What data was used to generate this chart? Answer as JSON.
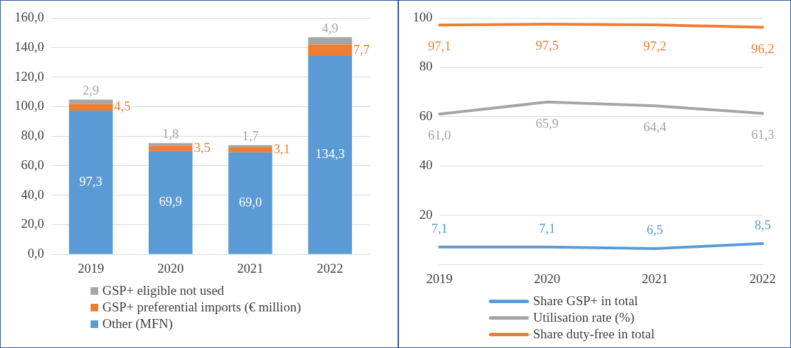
{
  "chart_data": [
    {
      "type": "bar",
      "stacked": true,
      "categories": [
        "2019",
        "2020",
        "2021",
        "2022"
      ],
      "series": [
        {
          "name": "Other (MFN)",
          "color": "#5b9bd5",
          "values": [
            97.3,
            69.9,
            69.0,
            134.3
          ],
          "value_labels": [
            "97,3",
            "69,9",
            "69,0",
            "134,3"
          ]
        },
        {
          "name": "GSP+ preferential imports (€ million)",
          "color": "#ed7d31",
          "values": [
            4.5,
            3.5,
            3.1,
            7.7
          ],
          "value_labels": [
            "4,5",
            "3,5",
            "3,1",
            "7,7"
          ]
        },
        {
          "name": "GSP+ eligible not used",
          "color": "#a5a5a5",
          "values": [
            2.9,
            1.8,
            1.7,
            4.9
          ],
          "value_labels": [
            "2,9",
            "1,8",
            "1,7",
            "4,9"
          ]
        }
      ],
      "ylim": [
        0,
        160
      ],
      "yticks": [
        {
          "value": 0,
          "label": "0,0"
        },
        {
          "value": 20,
          "label": "20,0"
        },
        {
          "value": 40,
          "label": "40,0"
        },
        {
          "value": 60,
          "label": "60,0"
        },
        {
          "value": 80,
          "label": "80,0"
        },
        {
          "value": 100,
          "label": "100,0"
        },
        {
          "value": 120,
          "label": "120,0"
        },
        {
          "value": 140,
          "label": "140,0"
        },
        {
          "value": 160,
          "label": "160,0"
        }
      ],
      "grid": "y",
      "legend": "bottom"
    },
    {
      "type": "line",
      "categories": [
        "2019",
        "2020",
        "2021",
        "2022"
      ],
      "series": [
        {
          "name": "Share GSP+ in total",
          "color": "#5b9bd5",
          "values": [
            7.1,
            7.1,
            6.5,
            8.5
          ],
          "value_labels": [
            "7,1",
            "7,1",
            "6,5",
            "8,5"
          ]
        },
        {
          "name": "Utilisation rate (%)",
          "color": "#a5a5a5",
          "values": [
            61.0,
            65.9,
            64.4,
            61.3
          ],
          "value_labels": [
            "61,0",
            "65,9",
            "64,4",
            "61,3"
          ]
        },
        {
          "name": "Share duty-free in total",
          "color": "#ed7d31",
          "values": [
            97.1,
            97.5,
            97.2,
            96.2
          ],
          "value_labels": [
            "97,1",
            "97,5",
            "97,2",
            "96,2"
          ]
        }
      ],
      "ylim": [
        0,
        100
      ],
      "yticks": [
        {
          "value": 0,
          "label": null
        },
        20,
        40,
        60,
        80,
        100
      ],
      "grid": "y",
      "legend": "bottom",
      "marker": "none",
      "line_style": "solid"
    }
  ]
}
